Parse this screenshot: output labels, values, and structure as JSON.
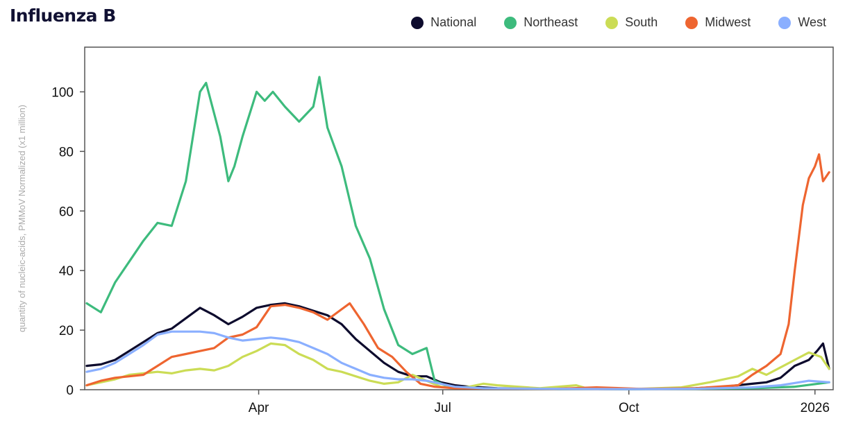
{
  "chart_data": {
    "type": "line",
    "title": "Influenza B",
    "ylabel": "quantity of nucleic-acids, PMMoV Normalized (x1 million)",
    "xlabel": "",
    "ylim": [
      0,
      115
    ],
    "xlim": [
      "2025-01-05",
      "2026-01-10"
    ],
    "yticks": [
      0,
      20,
      40,
      60,
      80,
      100
    ],
    "xticks": [
      {
        "date": "2025-04-01",
        "label": "Apr"
      },
      {
        "date": "2025-07-01",
        "label": "Jul"
      },
      {
        "date": "2025-10-01",
        "label": "Oct"
      },
      {
        "date": "2026-01-01",
        "label": "2026"
      }
    ],
    "legend_position": "top-right",
    "grid": false,
    "series": [
      {
        "name": "National",
        "color": "#0d0b2d",
        "points": [
          [
            "2025-01-06",
            8
          ],
          [
            "2025-01-13",
            8.5
          ],
          [
            "2025-01-20",
            10
          ],
          [
            "2025-01-27",
            13
          ],
          [
            "2025-02-03",
            16
          ],
          [
            "2025-02-10",
            19
          ],
          [
            "2025-02-17",
            20.5
          ],
          [
            "2025-02-24",
            24
          ],
          [
            "2025-03-03",
            27.5
          ],
          [
            "2025-03-10",
            25
          ],
          [
            "2025-03-17",
            22
          ],
          [
            "2025-03-24",
            24.5
          ],
          [
            "2025-03-31",
            27.5
          ],
          [
            "2025-04-07",
            28.5
          ],
          [
            "2025-04-14",
            29
          ],
          [
            "2025-04-21",
            28
          ],
          [
            "2025-04-28",
            26.5
          ],
          [
            "2025-05-05",
            25
          ],
          [
            "2025-05-12",
            22
          ],
          [
            "2025-05-19",
            17
          ],
          [
            "2025-05-26",
            13
          ],
          [
            "2025-06-02",
            9
          ],
          [
            "2025-06-09",
            6
          ],
          [
            "2025-06-16",
            4.5
          ],
          [
            "2025-06-23",
            4.5
          ],
          [
            "2025-06-30",
            2.5
          ],
          [
            "2025-07-07",
            1.5
          ],
          [
            "2025-07-14",
            1
          ],
          [
            "2025-07-28",
            0.5
          ],
          [
            "2025-08-25",
            0.3
          ],
          [
            "2025-09-29",
            0.2
          ],
          [
            "2025-10-20",
            0.3
          ],
          [
            "2025-11-03",
            0.5
          ],
          [
            "2025-11-17",
            1
          ],
          [
            "2025-12-01",
            2
          ],
          [
            "2025-12-08",
            2.5
          ],
          [
            "2025-12-15",
            4
          ],
          [
            "2025-12-22",
            8
          ],
          [
            "2025-12-29",
            10
          ],
          [
            "2026-01-02",
            13
          ],
          [
            "2026-01-05",
            15.5
          ],
          [
            "2026-01-08",
            7
          ]
        ]
      },
      {
        "name": "Northeast",
        "color": "#3dbb7d",
        "points": [
          [
            "2025-01-06",
            29
          ],
          [
            "2025-01-13",
            26
          ],
          [
            "2025-01-20",
            36
          ],
          [
            "2025-01-27",
            43
          ],
          [
            "2025-02-03",
            50
          ],
          [
            "2025-02-10",
            56
          ],
          [
            "2025-02-17",
            55
          ],
          [
            "2025-02-24",
            70
          ],
          [
            "2025-03-03",
            100
          ],
          [
            "2025-03-06",
            103
          ],
          [
            "2025-03-13",
            85
          ],
          [
            "2025-03-17",
            70
          ],
          [
            "2025-03-20",
            75
          ],
          [
            "2025-03-24",
            85
          ],
          [
            "2025-03-31",
            100
          ],
          [
            "2025-04-04",
            97
          ],
          [
            "2025-04-08",
            100
          ],
          [
            "2025-04-14",
            95
          ],
          [
            "2025-04-21",
            90
          ],
          [
            "2025-04-28",
            95
          ],
          [
            "2025-05-01",
            105
          ],
          [
            "2025-05-05",
            88
          ],
          [
            "2025-05-12",
            75
          ],
          [
            "2025-05-19",
            55
          ],
          [
            "2025-05-26",
            44
          ],
          [
            "2025-06-02",
            27
          ],
          [
            "2025-06-09",
            15
          ],
          [
            "2025-06-16",
            12
          ],
          [
            "2025-06-23",
            14
          ],
          [
            "2025-06-27",
            3
          ],
          [
            "2025-07-04",
            1
          ],
          [
            "2025-07-14",
            0.5
          ],
          [
            "2025-08-25",
            0.3
          ],
          [
            "2025-09-29",
            0.2
          ],
          [
            "2025-11-03",
            0.3
          ],
          [
            "2025-12-01",
            0.5
          ],
          [
            "2025-12-22",
            1
          ],
          [
            "2026-01-08",
            2.5
          ]
        ]
      },
      {
        "name": "South",
        "color": "#cbdc55",
        "points": [
          [
            "2025-01-06",
            1.5
          ],
          [
            "2025-01-13",
            2.5
          ],
          [
            "2025-01-20",
            3.5
          ],
          [
            "2025-01-27",
            5
          ],
          [
            "2025-02-03",
            5.5
          ],
          [
            "2025-02-10",
            6
          ],
          [
            "2025-02-17",
            5.5
          ],
          [
            "2025-02-24",
            6.5
          ],
          [
            "2025-03-03",
            7
          ],
          [
            "2025-03-10",
            6.5
          ],
          [
            "2025-03-17",
            8
          ],
          [
            "2025-03-24",
            11
          ],
          [
            "2025-03-31",
            13
          ],
          [
            "2025-04-07",
            15.5
          ],
          [
            "2025-04-14",
            15
          ],
          [
            "2025-04-21",
            12
          ],
          [
            "2025-04-28",
            10
          ],
          [
            "2025-05-05",
            7
          ],
          [
            "2025-05-12",
            6
          ],
          [
            "2025-05-19",
            4.5
          ],
          [
            "2025-05-26",
            3
          ],
          [
            "2025-06-02",
            2
          ],
          [
            "2025-06-09",
            2.5
          ],
          [
            "2025-06-16",
            5
          ],
          [
            "2025-06-23",
            3
          ],
          [
            "2025-06-30",
            1
          ],
          [
            "2025-07-07",
            0.5
          ],
          [
            "2025-07-14",
            1
          ],
          [
            "2025-07-21",
            2
          ],
          [
            "2025-07-28",
            1.5
          ],
          [
            "2025-08-18",
            0.5
          ],
          [
            "2025-09-05",
            1.5
          ],
          [
            "2025-09-10",
            0.5
          ],
          [
            "2025-10-06",
            0.3
          ],
          [
            "2025-10-27",
            0.8
          ],
          [
            "2025-11-10",
            2.5
          ],
          [
            "2025-11-24",
            4.5
          ],
          [
            "2025-12-01",
            7
          ],
          [
            "2025-12-08",
            5
          ],
          [
            "2025-12-15",
            7.5
          ],
          [
            "2025-12-22",
            10
          ],
          [
            "2025-12-29",
            12.5
          ],
          [
            "2026-01-04",
            11
          ],
          [
            "2026-01-08",
            7
          ]
        ]
      },
      {
        "name": "Midwest",
        "color": "#ee6530",
        "points": [
          [
            "2025-01-06",
            1.5
          ],
          [
            "2025-01-13",
            3
          ],
          [
            "2025-01-20",
            4
          ],
          [
            "2025-01-27",
            4.5
          ],
          [
            "2025-02-03",
            5
          ],
          [
            "2025-02-10",
            8
          ],
          [
            "2025-02-17",
            11
          ],
          [
            "2025-02-24",
            12
          ],
          [
            "2025-03-03",
            13
          ],
          [
            "2025-03-10",
            14
          ],
          [
            "2025-03-17",
            17.5
          ],
          [
            "2025-03-24",
            18.5
          ],
          [
            "2025-03-31",
            21
          ],
          [
            "2025-04-07",
            28
          ],
          [
            "2025-04-14",
            28.5
          ],
          [
            "2025-04-21",
            27.5
          ],
          [
            "2025-04-28",
            26
          ],
          [
            "2025-05-05",
            23.5
          ],
          [
            "2025-05-12",
            27
          ],
          [
            "2025-05-16",
            29
          ],
          [
            "2025-05-23",
            22
          ],
          [
            "2025-05-30",
            14
          ],
          [
            "2025-06-06",
            11
          ],
          [
            "2025-06-13",
            6
          ],
          [
            "2025-06-20",
            2
          ],
          [
            "2025-06-27",
            1
          ],
          [
            "2025-07-07",
            0.5
          ],
          [
            "2025-08-25",
            0.3
          ],
          [
            "2025-09-15",
            0.8
          ],
          [
            "2025-10-06",
            0.3
          ],
          [
            "2025-11-03",
            0.5
          ],
          [
            "2025-11-24",
            1.5
          ],
          [
            "2025-12-01",
            5
          ],
          [
            "2025-12-08",
            8
          ],
          [
            "2025-12-15",
            12
          ],
          [
            "2025-12-19",
            22
          ],
          [
            "2025-12-22",
            40
          ],
          [
            "2025-12-26",
            62
          ],
          [
            "2025-12-29",
            71
          ],
          [
            "2026-01-01",
            75
          ],
          [
            "2026-01-03",
            79
          ],
          [
            "2026-01-05",
            70
          ],
          [
            "2026-01-08",
            73
          ]
        ]
      },
      {
        "name": "West",
        "color": "#8aafff",
        "points": [
          [
            "2025-01-06",
            6
          ],
          [
            "2025-01-13",
            7
          ],
          [
            "2025-01-20",
            9
          ],
          [
            "2025-01-27",
            12
          ],
          [
            "2025-02-03",
            15
          ],
          [
            "2025-02-10",
            18.5
          ],
          [
            "2025-02-17",
            19.5
          ],
          [
            "2025-02-24",
            19.5
          ],
          [
            "2025-03-03",
            19.5
          ],
          [
            "2025-03-10",
            19
          ],
          [
            "2025-03-17",
            17.5
          ],
          [
            "2025-03-24",
            16.5
          ],
          [
            "2025-03-31",
            17
          ],
          [
            "2025-04-07",
            17.5
          ],
          [
            "2025-04-14",
            17
          ],
          [
            "2025-04-21",
            16
          ],
          [
            "2025-04-28",
            14
          ],
          [
            "2025-05-05",
            12
          ],
          [
            "2025-05-12",
            9
          ],
          [
            "2025-05-19",
            7
          ],
          [
            "2025-05-26",
            5
          ],
          [
            "2025-06-02",
            4
          ],
          [
            "2025-06-09",
            3.5
          ],
          [
            "2025-06-16",
            3.5
          ],
          [
            "2025-06-23",
            3
          ],
          [
            "2025-06-30",
            2
          ],
          [
            "2025-07-07",
            1
          ],
          [
            "2025-07-21",
            0.5
          ],
          [
            "2025-08-25",
            0.3
          ],
          [
            "2025-09-29",
            0.2
          ],
          [
            "2025-11-03",
            0.3
          ],
          [
            "2025-12-01",
            0.8
          ],
          [
            "2025-12-15",
            1.5
          ],
          [
            "2025-12-29",
            3
          ],
          [
            "2026-01-08",
            2.5
          ]
        ]
      }
    ]
  }
}
